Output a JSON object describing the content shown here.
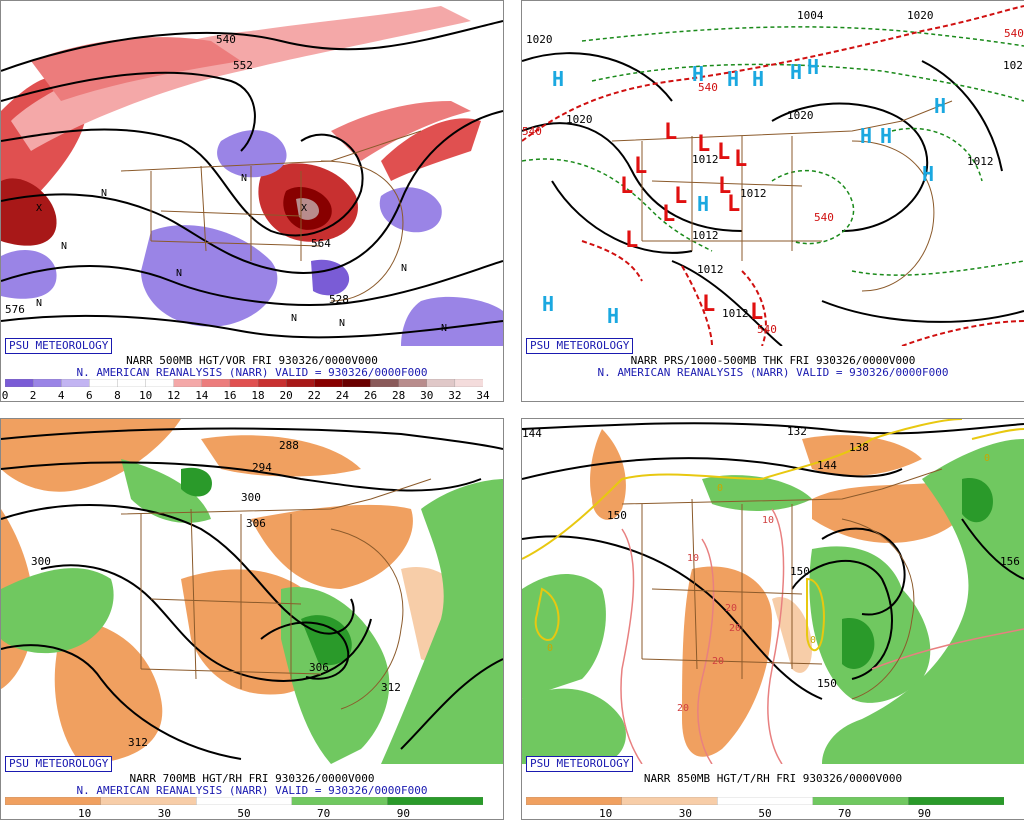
{
  "panels": [
    {
      "tag": "PSU METEOROLOGY",
      "caption1": "NARR 500MB HGT/VOR FRI 930326/0000V000",
      "caption2": "N. AMERICAN REANALYSIS (NARR) VALID = 930326/0000F000",
      "scale": [
        "0",
        "2",
        "4",
        "6",
        "8",
        "10",
        "12",
        "14",
        "16",
        "18",
        "20",
        "22",
        "24",
        "26",
        "28",
        "30",
        "32",
        "34"
      ],
      "colors": [
        "#7a5cd6",
        "#9a84e6",
        "#c2b4f2",
        "#fff",
        "#fff",
        "#fff",
        "#f4a8a8",
        "#ec7c7c",
        "#e05050",
        "#c83030",
        "#a81818",
        "#880000",
        "#6a0000",
        "#8a5a5a",
        "#b88c8c",
        "#e0c8c8",
        "#f4dcdc"
      ],
      "labels": [
        "540",
        "552",
        "564",
        "576",
        "528",
        "N",
        "N",
        "N",
        "N",
        "N",
        "N",
        "N",
        "N",
        "N",
        "X",
        "X"
      ]
    },
    {
      "tag": "PSU METEOROLOGY",
      "caption1": "NARR PRS/1000-500MB THK FRI 930326/0000V000",
      "caption2": "N. AMERICAN REANALYSIS (NARR) VALID = 930326/0000F000",
      "labels": [
        "1020",
        "1020",
        "1004",
        "1012",
        "1020",
        "1020",
        "1012",
        "1012",
        "1012",
        "1012",
        "1012",
        "102",
        "540",
        "540",
        "540",
        "540",
        "540"
      ],
      "highs": [
        "H",
        "H",
        "H",
        "H",
        "H",
        "H",
        "H",
        "H",
        "H",
        "H",
        "H",
        "H",
        "H"
      ],
      "lows": [
        "L",
        "L",
        "L",
        "L",
        "L",
        "L",
        "L",
        "L",
        "L",
        "L",
        "L",
        "L",
        "L"
      ]
    },
    {
      "tag": "PSU METEOROLOGY",
      "caption1": "NARR 700MB HGT/RH FRI 930326/0000V000",
      "caption2": "N. AMERICAN REANALYSIS (NARR) VALID = 930326/0000F000",
      "scale": [
        "10",
        "30",
        "50",
        "70",
        "90"
      ],
      "colors": [
        "#f0a060",
        "#f7cda8",
        "#fff",
        "#70c860",
        "#2a9a2a"
      ],
      "labels": [
        "288",
        "294",
        "300",
        "306",
        "312",
        "300",
        "306",
        "312"
      ]
    },
    {
      "tag": "PSU METEOROLOGY",
      "caption1": "NARR 850MB HGT/T/RH FRI 930326/0000V000",
      "caption2": "",
      "scale": [
        "10",
        "30",
        "50",
        "70",
        "90"
      ],
      "colors": [
        "#f0a060",
        "#f7cda8",
        "#fff",
        "#70c860",
        "#2a9a2a"
      ],
      "labels": [
        "144",
        "138",
        "132",
        "144",
        "150",
        "156",
        "150",
        "150",
        "0",
        "0",
        "0",
        "0",
        "10",
        "10",
        "20",
        "20",
        "20",
        "20"
      ]
    }
  ]
}
